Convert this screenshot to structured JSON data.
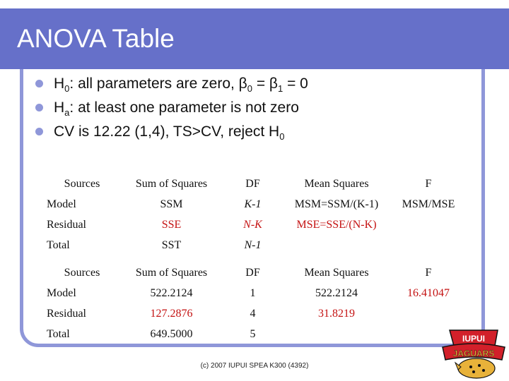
{
  "title": "ANOVA Table",
  "bullets": [
    {
      "pre": "H",
      "sub": "0",
      "post": ": all parameters are zero, β",
      "sub2": "0",
      "post2": " = β",
      "sub3": "1",
      "post3": " = 0"
    },
    {
      "pre": "H",
      "sub": "a",
      "post": ": at least one parameter is not zero"
    },
    {
      "pre": "CV is 12.22 (1,4), TS>CV, reject H",
      "sub": "0"
    }
  ],
  "table1": {
    "headers": [
      "Sources",
      "Sum of Squares",
      "DF",
      "Mean Squares",
      "F"
    ],
    "rows": [
      [
        "Model",
        "SSM",
        "K-1",
        "MSM=SSM/(K-1)",
        "MSM/MSE"
      ],
      [
        "Residual",
        "SSE",
        "N-K",
        "MSE=SSE/(N-K)",
        ""
      ],
      [
        "Total",
        "SST",
        "N-1",
        "",
        ""
      ]
    ]
  },
  "table2": {
    "headers": [
      "Sources",
      "Sum of Squares",
      "DF",
      "Mean Squares",
      "F"
    ],
    "rows": [
      [
        "Model",
        "522.2124",
        "1",
        "522.2124",
        "16.41047"
      ],
      [
        "Residual",
        "127.2876",
        "4",
        "31.8219",
        ""
      ],
      [
        "Total",
        "649.5000",
        "5",
        "",
        ""
      ]
    ]
  },
  "footer": "(c) 2007 IUPUI SPEA K300 (4392)",
  "logo": {
    "text_top": "IUPUI",
    "text_main": "JAGUARS",
    "colors": {
      "red": "#d2202a",
      "gold": "#e8b23a",
      "black": "#111111"
    }
  },
  "colors": {
    "accent": "#6670c9",
    "frame": "#8f97d9",
    "highlight": "#c41212"
  }
}
